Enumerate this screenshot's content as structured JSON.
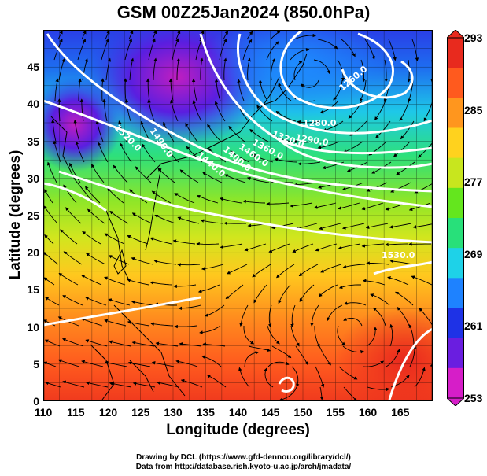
{
  "title": "GSM 00Z25Jan2024 (850.0hPa)",
  "xaxis": {
    "label": "Longitude (degrees)",
    "range": [
      110,
      170
    ],
    "ticks": [
      "110",
      "115",
      "120",
      "125",
      "130",
      "135",
      "140",
      "145",
      "150",
      "155",
      "160",
      "165"
    ]
  },
  "yaxis": {
    "label": "Latitude (degrees)",
    "range": [
      0,
      50
    ],
    "ticks": [
      "0",
      "5",
      "10",
      "15",
      "20",
      "25",
      "30",
      "35",
      "40",
      "45"
    ]
  },
  "colorbar": {
    "range": [
      253,
      293
    ],
    "ticks": [
      "293",
      "285",
      "277",
      "269",
      "261",
      "253"
    ],
    "colors": [
      "#d61ec8",
      "#6a1ee0",
      "#1e32e6",
      "#1e82ff",
      "#1ed2e8",
      "#28e07a",
      "#64e61e",
      "#c8e61e",
      "#ffd21e",
      "#ff961e",
      "#ff5a1e",
      "#e82a1e"
    ]
  },
  "contours": {
    "color": "#ffffff",
    "labels": [
      "1520.0",
      "1490.0",
      "1460.0",
      "1440.0",
      "1400.0",
      "1360.0",
      "1320.0",
      "1290.0",
      "1280.0",
      "1260.0",
      "1530.0"
    ]
  },
  "credit": {
    "line1": "Drawing by DCL (https://www.gfd-dennou.org/library/dcl/)",
    "line2": "Data from http://database.rish.kyoto-u.ac.jp/arch/jmadata/"
  }
}
